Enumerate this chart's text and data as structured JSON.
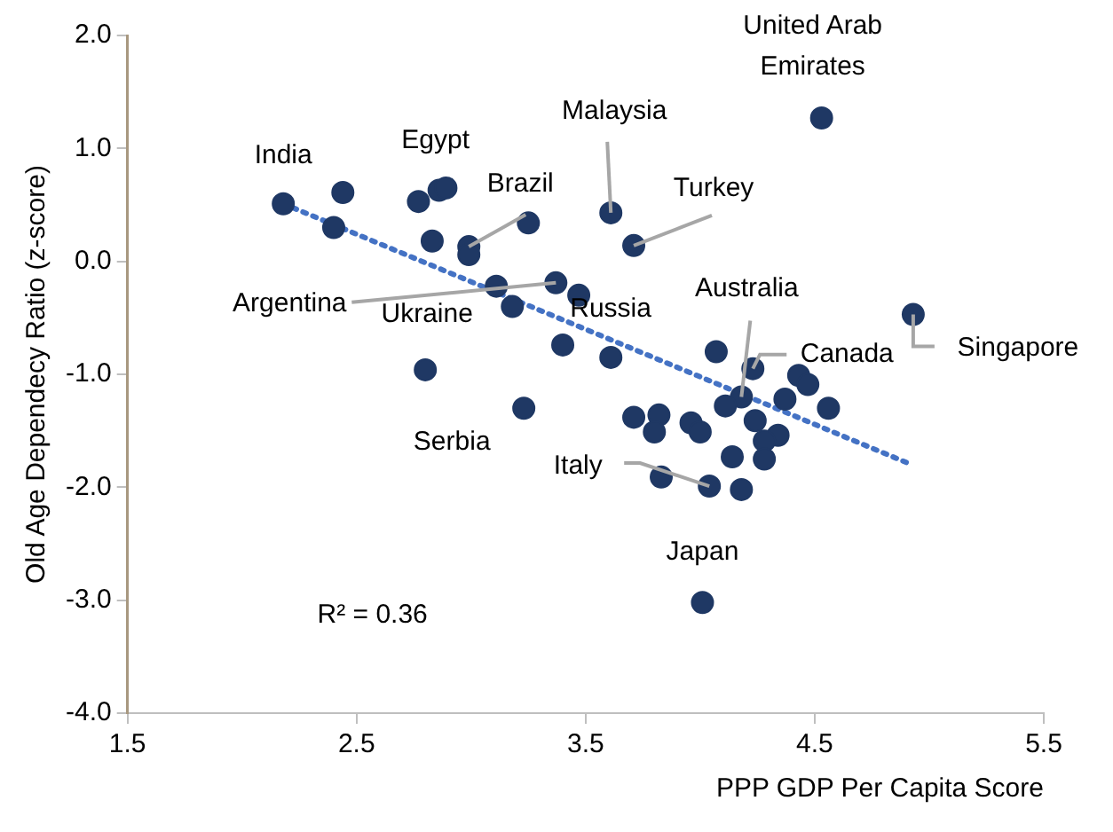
{
  "chart_data": {
    "type": "scatter",
    "xlabel": "PPP GDP Per Capita Score",
    "ylabel": "Old Age Dependecy Ratio (z-score)",
    "xlim": [
      1.5,
      5.5
    ],
    "xticks": [
      1.5,
      2.5,
      3.5,
      4.5,
      5.5
    ],
    "ylim": [
      -4,
      2
    ],
    "yticks": [
      {
        "value": -4,
        "label": "-4.0"
      },
      {
        "value": -3,
        "label": "-3.0"
      },
      {
        "value": -2,
        "label": "-2.0"
      },
      {
        "value": -1,
        "label": "-1.0"
      },
      {
        "value": 0,
        "label": "0.0"
      },
      {
        "value": 1,
        "label": "1.0"
      },
      {
        "value": 2,
        "label": "2.0"
      }
    ],
    "grid": false,
    "legend": false,
    "marker": "circle",
    "series": [
      {
        "color": "#1f3864",
        "x": [
          2.18,
          2.44,
          2.4,
          2.77,
          2.86,
          2.89,
          2.83,
          2.99,
          2.99,
          3.25,
          3.37,
          3.11,
          3.18,
          3.47,
          3.61,
          3.71,
          4.53,
          3.4,
          3.61,
          2.8,
          3.23,
          4.07,
          4.93,
          4.23,
          4.18,
          4.11,
          4.37,
          4.43,
          4.47,
          4.56,
          4.24,
          4.34,
          4.28,
          4.28,
          4.14,
          3.71,
          3.82,
          3.8,
          3.96,
          4.0,
          3.83,
          4.04,
          4.18,
          4.01
        ],
        "values": [
          0.51,
          0.61,
          0.3,
          0.53,
          0.63,
          0.65,
          0.18,
          0.13,
          0.06,
          0.34,
          -0.19,
          -0.22,
          -0.4,
          -0.3,
          0.43,
          0.14,
          1.27,
          -0.74,
          -0.85,
          -0.96,
          -1.3,
          -0.8,
          -0.47,
          -0.95,
          -1.2,
          -1.28,
          -1.22,
          -1.01,
          -1.09,
          -1.3,
          -1.41,
          -1.54,
          -1.59,
          -1.75,
          -1.73,
          -1.38,
          -1.36,
          -1.51,
          -1.43,
          -1.51,
          -1.91,
          -1.99,
          -2.02,
          -3.02
        ]
      },
      {
        "type": "line",
        "color": "#4472c4",
        "line_style": "dotted",
        "marker": "none",
        "x": [
          2.18,
          4.9
        ],
        "values": [
          0.51,
          -1.78
        ]
      }
    ],
    "annotations": [
      {
        "text": "India",
        "x": 2.18,
        "y": 0.51
      },
      {
        "text": "Egypt",
        "x": 2.86,
        "y": 0.63
      },
      {
        "text": "Brazil",
        "x": 2.99,
        "y": 0.13
      },
      {
        "text": "Argentina",
        "x": 3.37,
        "y": -0.19
      },
      {
        "text": "Ukraine",
        "x": 3.11,
        "y": -0.22
      },
      {
        "text": "Russia",
        "x": 3.47,
        "y": -0.3
      },
      {
        "text": "Malaysia",
        "x": 3.61,
        "y": 0.43
      },
      {
        "text": "Turkey",
        "x": 3.71,
        "y": 0.14
      },
      {
        "text": "United Arab Emirates",
        "x": 4.53,
        "y": 1.27
      },
      {
        "text": "Australia",
        "x": 4.18,
        "y": -1.2
      },
      {
        "text": "Canada",
        "x": 4.23,
        "y": -0.95
      },
      {
        "text": "Singapore",
        "x": 4.93,
        "y": -0.47
      },
      {
        "text": "Serbia",
        "x": 2.8,
        "y": -0.96
      },
      {
        "text": "Italy",
        "x": 4.04,
        "y": -1.99
      },
      {
        "text": "Japan",
        "x": 4.01,
        "y": -3.02
      },
      "R² = 0.36"
    ]
  }
}
